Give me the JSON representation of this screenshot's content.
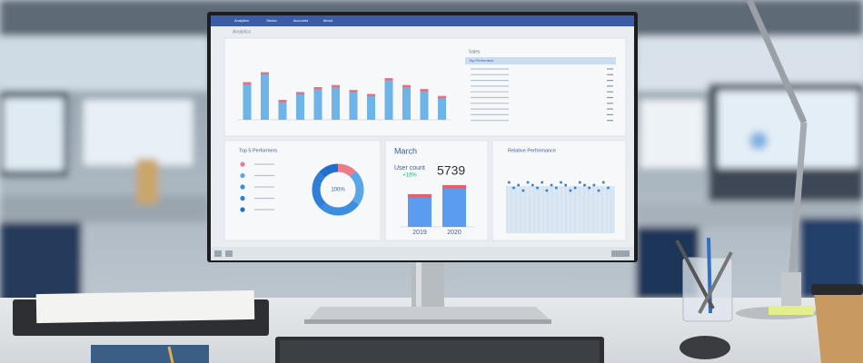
{
  "nav": [
    "Analytics",
    "Sector",
    "Accounts",
    "About"
  ],
  "page_title": "Analytics",
  "overview": {
    "type": "bar",
    "color": "#6fb4e8",
    "cap_color": "#e8707e",
    "values": [
      38,
      48,
      20,
      28,
      33,
      35,
      30,
      26,
      42,
      35,
      31,
      24
    ],
    "ylim": [
      0,
      55
    ]
  },
  "sales": {
    "title": "Sales",
    "subtitle": "Top Performers"
  },
  "top5": {
    "type": "pie",
    "title": "Top 5 Performers",
    "center_label": "100%",
    "values": [
      12,
      23,
      27,
      25,
      13
    ],
    "colors": [
      "#f07a8a",
      "#5aa6e6",
      "#3d8ee0",
      "#2f7fd8",
      "#1f6fd0"
    ]
  },
  "march": {
    "type": "bar",
    "title": "March",
    "metric_label": "User count",
    "metric": "5739",
    "change": "+16%",
    "categories": [
      "2019",
      "2020"
    ],
    "values": [
      36,
      46
    ],
    "ylim": [
      0,
      55
    ],
    "color": "#5b9cf0",
    "cap_color": "#e8606e"
  },
  "relative": {
    "type": "scatter",
    "title": "Relative Performance",
    "color": "#2f7fd8",
    "values": [
      7,
      5,
      6,
      4,
      7,
      6,
      5,
      7,
      4,
      6,
      5,
      7,
      6,
      4,
      5,
      7,
      6,
      5,
      6,
      4,
      7,
      5
    ],
    "ylim": [
      0,
      10
    ]
  }
}
